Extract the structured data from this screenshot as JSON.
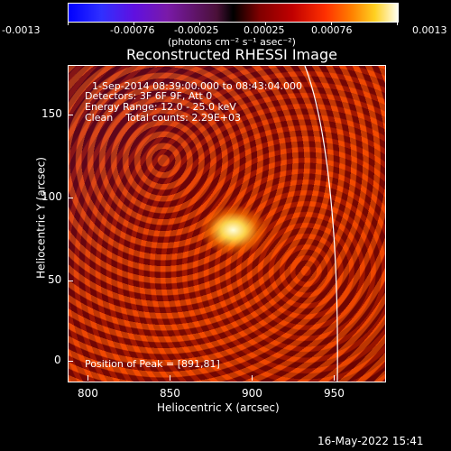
{
  "colorbar": {
    "ticks": [
      "-0.0013",
      "-0.00076",
      "-0.00025",
      "0.00025",
      "0.00076",
      "0.0013"
    ],
    "units": "(photons cm⁻² s⁻¹ asec⁻²)"
  },
  "title": "Reconstructed RHESSI Image",
  "info": {
    "time": "1-Sep-2014 08:39:00.000 to 08:43:04.000",
    "detectors": "Detectors: 3F 6F 9F, Att 0",
    "energy": "Energy Range: 12.0 - 25.0 keV",
    "clean": "Clean    Total counts: 2.29E+03",
    "peak": "Position of Peak = [891,81]"
  },
  "axes": {
    "xlabel": "Heliocentric X (arcsec)",
    "ylabel": "Heliocentric Y (arcsec)",
    "xticks": [
      "800",
      "850",
      "900",
      "950"
    ],
    "yticks": [
      "0",
      "50",
      "100",
      "150"
    ]
  },
  "footer": {
    "date": "16-May-2022 15:41"
  }
}
